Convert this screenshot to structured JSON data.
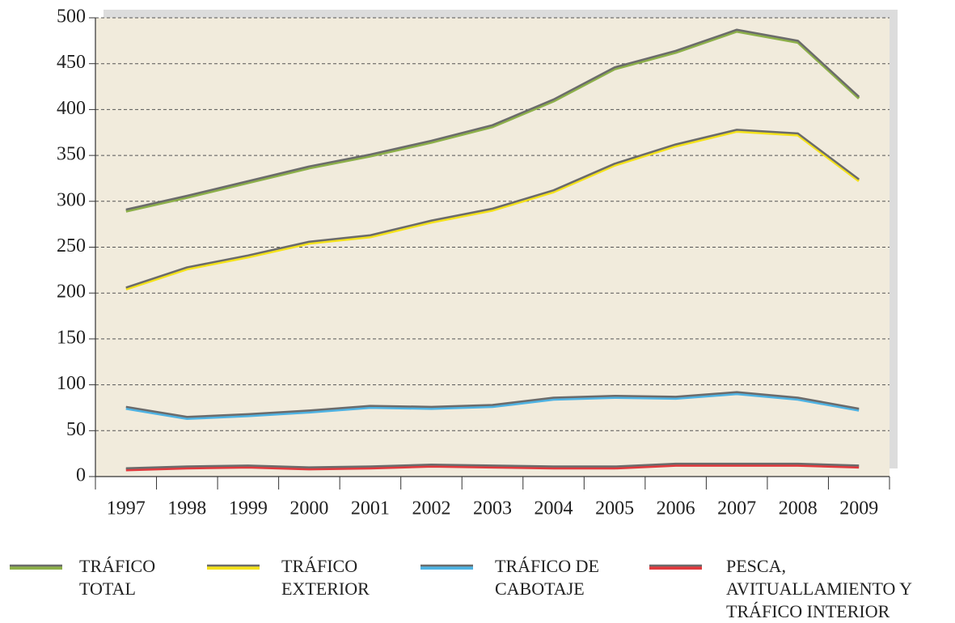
{
  "chart_data": {
    "type": "line",
    "categories": [
      "1997",
      "1998",
      "1999",
      "2000",
      "2001",
      "2002",
      "2003",
      "2004",
      "2005",
      "2006",
      "2007",
      "2008",
      "2009"
    ],
    "series": [
      {
        "name": "TRÁFICO TOTAL",
        "color": "#8db04a",
        "values": [
          291,
          306,
          322,
          338,
          351,
          366,
          383,
          411,
          446,
          464,
          487,
          475,
          414
        ]
      },
      {
        "name": "TRÁFICO EXTERIOR",
        "color": "#f4e21c",
        "values": [
          206,
          228,
          241,
          256,
          263,
          279,
          292,
          312,
          341,
          362,
          378,
          374,
          324
        ]
      },
      {
        "name": "TRÁFICO DE CABOTAJE",
        "color": "#4fb3e3",
        "values": [
          76,
          65,
          68,
          72,
          77,
          76,
          78,
          86,
          88,
          87,
          92,
          86,
          74
        ]
      },
      {
        "name": "PESCA, AVITUALLAMIENTO Y TRÁFICO INTERIOR",
        "color": "#e03a3e",
        "values": [
          9,
          11,
          12,
          10,
          11,
          13,
          12,
          11,
          11,
          14,
          14,
          14,
          12
        ]
      }
    ],
    "ylim": [
      0,
      500
    ],
    "yticks": [
      0,
      50,
      100,
      150,
      200,
      250,
      300,
      350,
      400,
      450,
      500
    ],
    "grid": true
  }
}
